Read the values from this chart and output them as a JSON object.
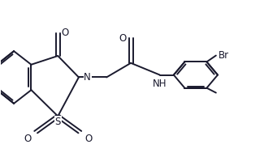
{
  "bg_color": "#ffffff",
  "line_color": "#1a1a2e",
  "line_width": 1.4,
  "font_size": 8.5,
  "xlim": [
    -0.05,
    1.08
  ],
  "ylim": [
    0.05,
    1.0
  ],
  "figsize": [
    3.25,
    1.89
  ],
  "dpi": 100
}
